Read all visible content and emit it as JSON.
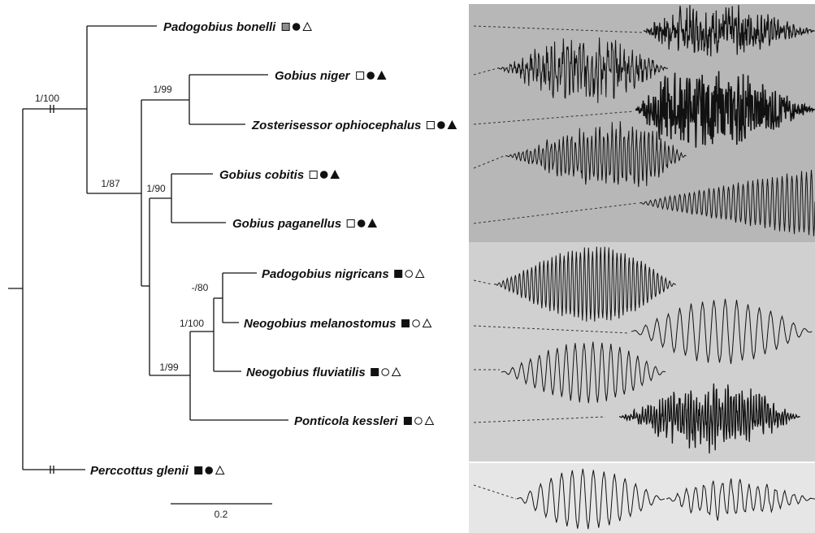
{
  "tree": {
    "taxa": [
      {
        "id": "padogobius-bonelli",
        "name": "Padogobius bonelli",
        "markers": [
          "square-gray",
          "circle-filled",
          "triangle-open"
        ]
      },
      {
        "id": "gobius-niger",
        "name": "Gobius niger",
        "markers": [
          "square-open",
          "circle-filled",
          "triangle-filled"
        ]
      },
      {
        "id": "zosterisessor-ophiocephalus",
        "name": "Zosterisessor ophiocephalus",
        "markers": [
          "square-open",
          "circle-filled",
          "triangle-filled"
        ]
      },
      {
        "id": "gobius-cobitis",
        "name": "Gobius cobitis",
        "markers": [
          "square-open",
          "circle-filled",
          "triangle-filled"
        ]
      },
      {
        "id": "gobius-paganellus",
        "name": "Gobius paganellus",
        "markers": [
          "square-open",
          "circle-filled",
          "triangle-filled"
        ]
      },
      {
        "id": "padogobius-nigricans",
        "name": "Padogobius nigricans",
        "markers": [
          "square-filled",
          "circle-open",
          "triangle-open"
        ]
      },
      {
        "id": "neogobius-melanostomus",
        "name": "Neogobius melanostomus",
        "markers": [
          "square-filled",
          "circle-open",
          "triangle-open"
        ]
      },
      {
        "id": "neogobius-fluviatilis",
        "name": "Neogobius fluviatilis",
        "markers": [
          "square-filled",
          "circle-open",
          "triangle-open"
        ]
      },
      {
        "id": "ponticola-kessleri",
        "name": "Ponticola kessleri",
        "markers": [
          "square-filled",
          "circle-open",
          "triangle-open"
        ]
      },
      {
        "id": "perccottus-glenii",
        "name": "Perccottus glenii",
        "markers": [
          "square-filled",
          "circle-filled",
          "triangle-open"
        ]
      }
    ],
    "support_values": [
      {
        "id": "node-root-gobius",
        "label": "1/100"
      },
      {
        "id": "node-niger-zoster",
        "label": "1/99"
      },
      {
        "id": "node-main-clade",
        "label": "1/87"
      },
      {
        "id": "node-cobitis-paganellus",
        "label": "1/90"
      },
      {
        "id": "node-nigricans-melanostomus",
        "label": "-/80"
      },
      {
        "id": "node-neogobius",
        "label": "1/100"
      },
      {
        "id": "node-ponticola",
        "label": "1/99"
      }
    ],
    "scale_bar": {
      "label": "0.2"
    }
  },
  "colors": {
    "panel_dark": "#b7b7b7",
    "panel_mid": "#d0d0d0",
    "panel_light": "#e6e6e6",
    "square_gray": "#8c8c8c",
    "ink": "#111111"
  }
}
